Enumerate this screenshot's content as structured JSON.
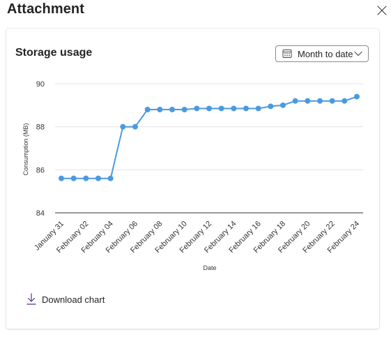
{
  "dialog": {
    "title": "Attachment",
    "close_icon": "close-icon"
  },
  "card": {
    "title": "Storage usage",
    "range_selector": {
      "selected": "Month to date",
      "icon": "calendar-icon",
      "chevron": "chevron-down-icon"
    },
    "download": {
      "label": "Download chart",
      "icon": "download-icon"
    }
  },
  "colors": {
    "series": "#4a9ae0",
    "accent_download": "#5c2e91",
    "grid": "#e6e6e6",
    "axis": "#333333"
  },
  "chart_data": {
    "type": "line",
    "title": "",
    "xlabel": "Date",
    "ylabel": "Consumption (MB)",
    "ylim": [
      84,
      90
    ],
    "yticks": [
      84,
      86,
      88,
      90
    ],
    "grid": true,
    "x": [
      "January 31",
      "February 01",
      "February 02",
      "February 03",
      "February 04",
      "February 05",
      "February 06",
      "February 07",
      "February 08",
      "February 09",
      "February 10",
      "February 11",
      "February 12",
      "February 13",
      "February 14",
      "February 15",
      "February 16",
      "February 17",
      "February 18",
      "February 19",
      "February 20",
      "February 21",
      "February 22",
      "February 23",
      "February 24"
    ],
    "xticklabels": [
      "January 31",
      "February 02",
      "February 04",
      "February 06",
      "February 08",
      "February 10",
      "February 12",
      "February 14",
      "February 16",
      "February 18",
      "February 20",
      "February 22",
      "February 24"
    ],
    "series": [
      {
        "values": [
          85.6,
          85.6,
          85.6,
          85.6,
          85.6,
          88.0,
          88.0,
          88.8,
          88.8,
          88.8,
          88.8,
          88.85,
          88.85,
          88.85,
          88.85,
          88.85,
          88.85,
          88.95,
          89.0,
          89.2,
          89.2,
          89.2,
          89.2,
          89.2,
          89.4
        ]
      }
    ]
  }
}
